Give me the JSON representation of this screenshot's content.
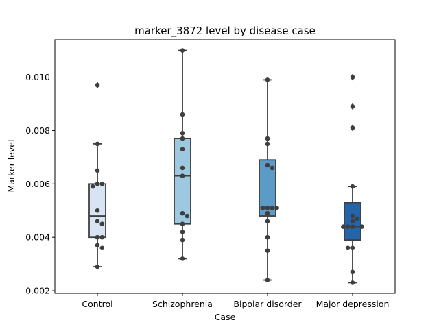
{
  "chart_data": {
    "type": "box",
    "title": "marker_3872 level by disease case",
    "xlabel": "Case",
    "ylabel": "Marker level",
    "ylim": [
      0.0019,
      0.0114
    ],
    "yticks": [
      0.002,
      0.004,
      0.006,
      0.008,
      0.01
    ],
    "ytick_labels": [
      "0.002",
      "0.004",
      "0.006",
      "0.008",
      "0.010"
    ],
    "grid": false,
    "legend": "none",
    "categories": [
      "Control",
      "Schizophrenia",
      "Bipolar disorder",
      "Major depression"
    ],
    "colors": [
      "#d6e4f3",
      "#9ec8e0",
      "#5b9bc8",
      "#2464a8"
    ],
    "box_stats": [
      {
        "whisker_low": 0.0029,
        "q1": 0.004,
        "median": 0.0048,
        "q3": 0.006,
        "whisker_high": 0.0075,
        "outliers": [
          0.0097
        ]
      },
      {
        "whisker_low": 0.0032,
        "q1": 0.0045,
        "median": 0.0063,
        "q3": 0.0077,
        "whisker_high": 0.011,
        "outliers": []
      },
      {
        "whisker_low": 0.0024,
        "q1": 0.0048,
        "median": 0.0051,
        "q3": 0.0069,
        "whisker_high": 0.0099,
        "outliers": []
      },
      {
        "whisker_low": 0.0023,
        "q1": 0.0039,
        "median": 0.0044,
        "q3": 0.0053,
        "whisker_high": 0.0059,
        "outliers": [
          0.0081,
          0.0089,
          0.01
        ]
      }
    ],
    "points": [
      [
        0.0097,
        0.0075,
        0.0065,
        0.006,
        0.006,
        0.0059,
        0.005,
        0.0046,
        0.0045,
        0.004,
        0.004,
        0.0037,
        0.0036,
        0.0029
      ],
      [
        0.011,
        0.0086,
        0.0079,
        0.0077,
        0.0073,
        0.0066,
        0.0063,
        0.0049,
        0.0048,
        0.0045,
        0.0042,
        0.0039,
        0.0032
      ],
      [
        0.0099,
        0.0077,
        0.0075,
        0.0067,
        0.0066,
        0.0051,
        0.0051,
        0.0051,
        0.0051,
        0.0049,
        0.0046,
        0.004,
        0.0035,
        0.0024
      ],
      [
        0.01,
        0.0089,
        0.0081,
        0.0059,
        0.0048,
        0.0047,
        0.0046,
        0.0044,
        0.0044,
        0.0044,
        0.0044,
        0.0036,
        0.0036,
        0.0027,
        0.0023
      ]
    ]
  }
}
